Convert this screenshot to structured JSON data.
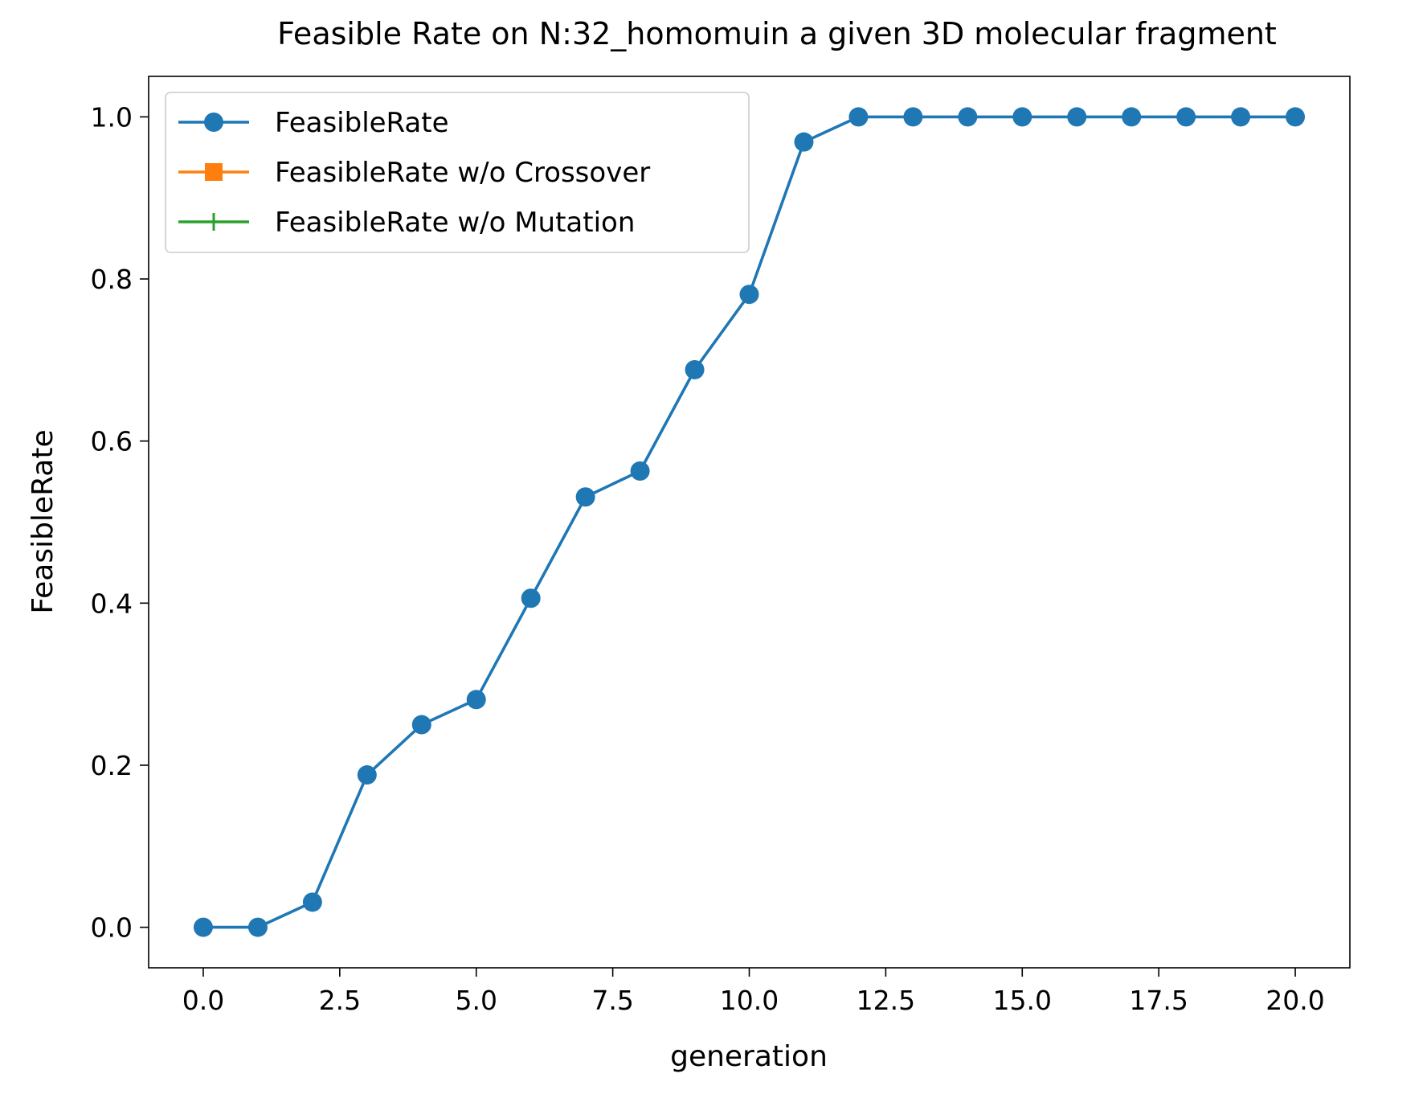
{
  "chart_data": {
    "type": "line",
    "title": "Feasible Rate on N:32_homomuin a given 3D molecular fragment",
    "xlabel": "generation",
    "ylabel": "FeasibleRate",
    "xlim": [
      -1,
      21
    ],
    "ylim": [
      -0.05,
      1.05
    ],
    "xticks": [
      "0.0",
      "2.5",
      "5.0",
      "7.5",
      "10.0",
      "12.5",
      "15.0",
      "17.5",
      "20.0"
    ],
    "xtick_values": [
      0,
      2.5,
      5,
      7.5,
      10,
      12.5,
      15,
      17.5,
      20
    ],
    "yticks": [
      "0.0",
      "0.2",
      "0.4",
      "0.6",
      "0.8",
      "1.0"
    ],
    "ytick_values": [
      0,
      0.2,
      0.4,
      0.6,
      0.8,
      1.0
    ],
    "grid": false,
    "legend_position": "upper-left",
    "series": [
      {
        "name": "FeasibleRate",
        "color": "#1f77b4",
        "marker": "circle",
        "x": [
          0,
          1,
          2,
          3,
          4,
          5,
          6,
          7,
          8,
          9,
          10,
          11,
          12,
          13,
          14,
          15,
          16,
          17,
          18,
          19,
          20
        ],
        "values": [
          0.0,
          0.0,
          0.031,
          0.188,
          0.25,
          0.281,
          0.406,
          0.531,
          0.563,
          0.688,
          0.781,
          0.969,
          1.0,
          1.0,
          1.0,
          1.0,
          1.0,
          1.0,
          1.0,
          1.0,
          1.0
        ]
      },
      {
        "name": "FeasibleRate w/o Crossover",
        "color": "#ff7f0e",
        "marker": "square",
        "x": [],
        "values": []
      },
      {
        "name": "FeasibleRate w/o Mutation",
        "color": "#2ca02c",
        "marker": "plus",
        "x": [],
        "values": []
      }
    ]
  }
}
